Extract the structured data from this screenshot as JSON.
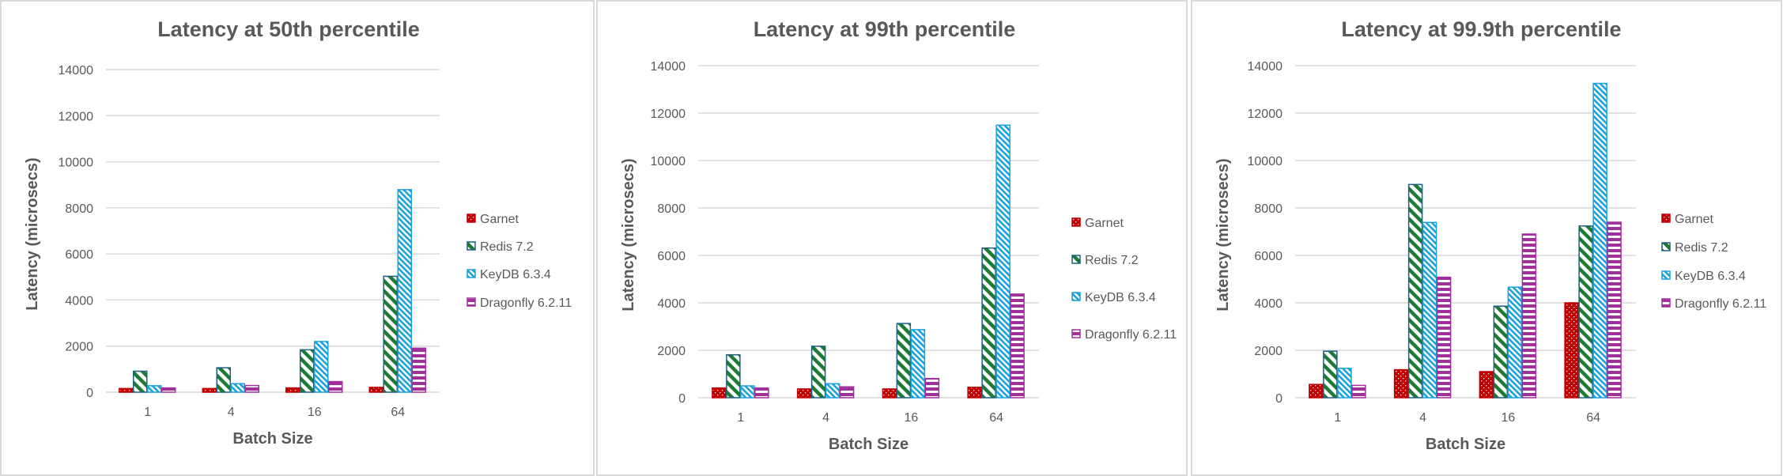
{
  "chart_data": [
    {
      "type": "bar",
      "title": "Latency at 50th percentile",
      "xlabel": "Batch Size",
      "ylabel": "Latency (microsecs)",
      "ylim": [
        0,
        14000
      ],
      "yticks": [
        "0",
        "2000",
        "4000",
        "6000",
        "8000",
        "10000",
        "12000",
        "14000"
      ],
      "grid": true,
      "legend": "right",
      "categories": [
        "1",
        "4",
        "16",
        "64"
      ],
      "series": [
        {
          "name": "Garnet",
          "values": [
            160,
            160,
            185,
            210
          ]
        },
        {
          "name": "Redis 7.2",
          "values": [
            910,
            1060,
            1840,
            5030
          ]
        },
        {
          "name": "KeyDB 6.3.4",
          "values": [
            280,
            370,
            2200,
            8790
          ]
        },
        {
          "name": "Dragonfly 6.2.11",
          "values": [
            185,
            290,
            460,
            1910
          ]
        }
      ]
    },
    {
      "type": "bar",
      "title": "Latency at 99th percentile",
      "xlabel": "Batch Size",
      "ylabel": "Latency (microsecs)",
      "ylim": [
        0,
        14000
      ],
      "yticks": [
        "0",
        "2000",
        "4000",
        "6000",
        "8000",
        "10000",
        "12000",
        "14000"
      ],
      "grid": true,
      "legend": "right",
      "categories": [
        "1",
        "4",
        "16",
        "64"
      ],
      "series": [
        {
          "name": "Garnet",
          "values": [
            410,
            370,
            370,
            440
          ]
        },
        {
          "name": "Redis 7.2",
          "values": [
            1810,
            2170,
            3130,
            6310
          ]
        },
        {
          "name": "KeyDB 6.3.4",
          "values": [
            500,
            590,
            2870,
            11490
          ]
        },
        {
          "name": "Dragonfly 6.2.11",
          "values": [
            410,
            460,
            810,
            4370
          ]
        }
      ]
    },
    {
      "type": "bar",
      "title": "Latency at 99.9th percentile",
      "xlabel": "Batch Size",
      "ylabel": "Latency (microsecs)",
      "ylim": [
        0,
        14000
      ],
      "yticks": [
        "0",
        "2000",
        "4000",
        "6000",
        "8000",
        "10000",
        "12000",
        "14000"
      ],
      "grid": true,
      "legend": "right",
      "categories": [
        "1",
        "4",
        "16",
        "64"
      ],
      "series": [
        {
          "name": "Garnet",
          "values": [
            560,
            1180,
            1100,
            4000
          ]
        },
        {
          "name": "Redis 7.2",
          "values": [
            1960,
            8990,
            3860,
            7240
          ]
        },
        {
          "name": "KeyDB 6.3.4",
          "values": [
            1240,
            7390,
            4660,
            13250
          ]
        },
        {
          "name": "Dragonfly 6.2.11",
          "values": [
            520,
            5080,
            6900,
            7400
          ]
        }
      ]
    }
  ],
  "colors": {
    "Garnet": "#c00000",
    "Redis 7.2": "#1e7b34",
    "Redis 7.2 outline": "#1f5f82",
    "KeyDB 6.3.4": "#1ba1dc",
    "Dragonfly 6.2.11": "#a1309b",
    "gridline": "#d9d9d9",
    "text": "#595959"
  },
  "patterns": {
    "Garnet": "dotted",
    "Redis 7.2": "diagonal-stripes",
    "KeyDB 6.3.4": "diagonal-stripes-light",
    "Dragonfly 6.2.11": "horizontal-stripes"
  }
}
